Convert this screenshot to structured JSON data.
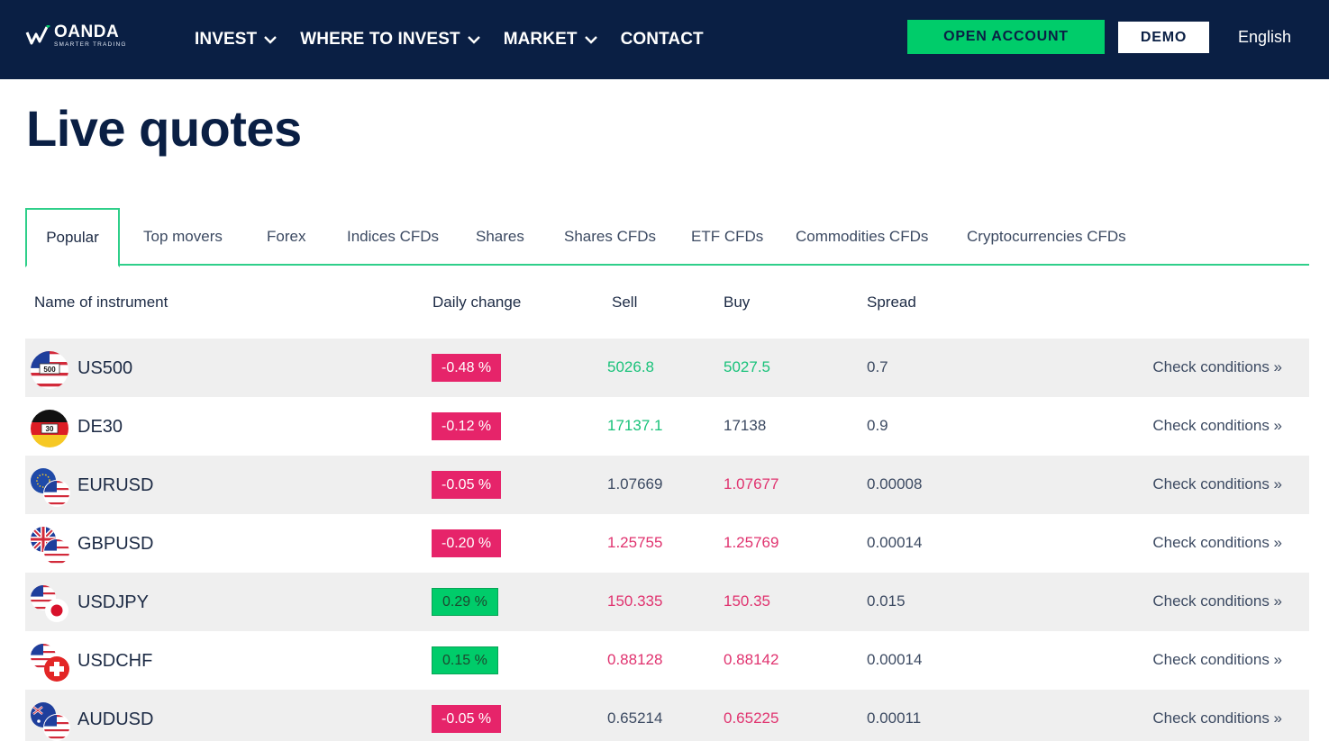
{
  "header": {
    "logo_name": "OANDA",
    "logo_tagline": "SMARTER TRADING",
    "nav": [
      {
        "label": "INVEST",
        "has_dropdown": true
      },
      {
        "label": "WHERE TO INVEST",
        "has_dropdown": true
      },
      {
        "label": "MARKET",
        "has_dropdown": true
      },
      {
        "label": "CONTACT",
        "has_dropdown": false
      }
    ],
    "open_account": "OPEN ACCOUNT",
    "demo": "DEMO",
    "language": "English"
  },
  "page_title": "Live quotes",
  "tabs": [
    {
      "label": "Popular",
      "active": true
    },
    {
      "label": "Top movers"
    },
    {
      "label": "Forex"
    },
    {
      "label": "Indices CFDs"
    },
    {
      "label": "Shares"
    },
    {
      "label": "Shares CFDs"
    },
    {
      "label": "ETF CFDs"
    },
    {
      "label": "Commodities CFDs"
    },
    {
      "label": "Cryptocurrencies CFDs"
    }
  ],
  "table": {
    "columns": {
      "name": "Name of instrument",
      "change": "Daily change",
      "sell": "Sell",
      "buy": "Buy",
      "spread": "Spread"
    },
    "rows": [
      {
        "symbol": "US500",
        "flag": "us-500-flag-icon",
        "change": "-0.48 %",
        "direction": "down",
        "sell": "5026.8",
        "sell_trend": "up",
        "buy": "5027.5",
        "buy_trend": "up",
        "spread": "0.7",
        "action": "Check conditions »"
      },
      {
        "symbol": "DE30",
        "flag": "de-30-flag-icon",
        "change": "-0.12 %",
        "direction": "down",
        "sell": "17137.1",
        "sell_trend": "up",
        "buy": "17138",
        "buy_trend": "none",
        "spread": "0.9",
        "action": "Check conditions »"
      },
      {
        "symbol": "EURUSD",
        "flag": "eu-us-flag-icon",
        "change": "-0.05 %",
        "direction": "down",
        "sell": "1.07669",
        "sell_trend": "none",
        "buy": "1.07677",
        "buy_trend": "down",
        "spread": "0.00008",
        "action": "Check conditions »"
      },
      {
        "symbol": "GBPUSD",
        "flag": "gb-us-flag-icon",
        "change": "-0.20 %",
        "direction": "down",
        "sell": "1.25755",
        "sell_trend": "down",
        "buy": "1.25769",
        "buy_trend": "down",
        "spread": "0.00014",
        "action": "Check conditions »"
      },
      {
        "symbol": "USDJPY",
        "flag": "us-jp-flag-icon",
        "change": "0.29 %",
        "direction": "up",
        "sell": "150.335",
        "sell_trend": "down",
        "buy": "150.35",
        "buy_trend": "down",
        "spread": "0.015",
        "action": "Check conditions »"
      },
      {
        "symbol": "USDCHF",
        "flag": "us-ch-flag-icon",
        "change": "0.15 %",
        "direction": "up",
        "sell": "0.88128",
        "sell_trend": "down",
        "buy": "0.88142",
        "buy_trend": "down",
        "spread": "0.00014",
        "action": "Check conditions »"
      },
      {
        "symbol": "AUDUSD",
        "flag": "au-us-flag-icon",
        "change": "-0.05 %",
        "direction": "down",
        "sell": "0.65214",
        "sell_trend": "none",
        "buy": "0.65225",
        "buy_trend": "down",
        "spread": "0.00011",
        "action": "Check conditions »"
      }
    ]
  },
  "colors": {
    "navy": "#0a1f44",
    "accent_green": "#00cc6a",
    "tab_border": "#2fcf8a",
    "negative": "#e6246a",
    "row_shade": "#efefef"
  }
}
